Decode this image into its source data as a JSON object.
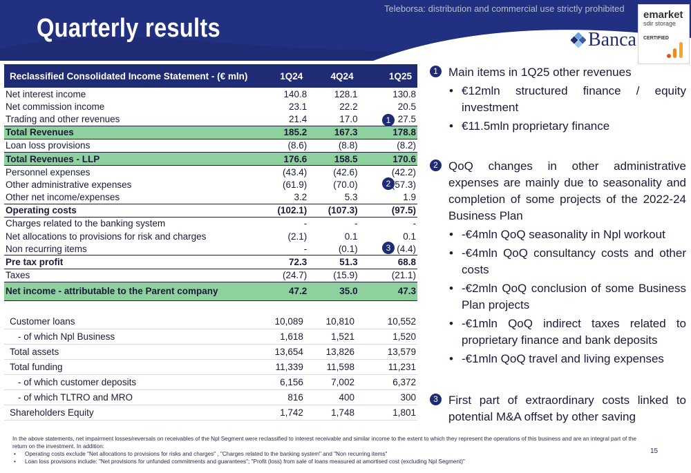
{
  "header": {
    "title": "Quarterly results",
    "watermark": "Teleborsa: distribution and commercial use strictly prohibited",
    "brand": "Banca",
    "badge": {
      "line1": "emarket",
      "line2": "sdir storage",
      "line3": "CERTIFIED"
    },
    "colors": {
      "navy": "#1f2b74",
      "green_highlight": "#8fd19e"
    }
  },
  "income_statement": {
    "header": {
      "label": "Reclassified Consolidated Income Statement - (€ mln)",
      "col1": "1Q24",
      "col2": "4Q24",
      "col3": "1Q25"
    },
    "rows": [
      {
        "label": "Net interest income",
        "v1": "140.8",
        "v2": "128.1",
        "v3": "130.8"
      },
      {
        "label": "Net commission income",
        "v1": "23.1",
        "v2": "22.2",
        "v3": "20.5"
      },
      {
        "label": "Trading and other revenues",
        "v1": "21.4",
        "v2": "17.0",
        "v3": "27.5"
      },
      {
        "label": "Total Revenues",
        "v1": "185.2",
        "v2": "167.3",
        "v3": "178.8"
      },
      {
        "label": "Loan loss provisions",
        "v1": "(8.6)",
        "v2": "(8.8)",
        "v3": "(8.2)"
      },
      {
        "label": "Total Revenues - LLP",
        "v1": "176.6",
        "v2": "158.5",
        "v3": "170.6"
      },
      {
        "label": "Personnel expenses",
        "v1": "(43.4)",
        "v2": "(42.6)",
        "v3": "(42.2)"
      },
      {
        "label": "Other administrative expenses",
        "v1": "(61.9)",
        "v2": "(70.0)",
        "v3": "(57.3)"
      },
      {
        "label": "Other net income/expenses",
        "v1": "3.2",
        "v2": "5.3",
        "v3": "1.9"
      },
      {
        "label": "Operating costs",
        "v1": "(102.1)",
        "v2": "(107.3)",
        "v3": "(97.5)"
      },
      {
        "label": "Charges related to the banking system",
        "v1": "-",
        "v2": "-",
        "v3": "-"
      },
      {
        "label": "Net allocations to provisions for risk and charges",
        "v1": "(2.1)",
        "v2": "0.1",
        "v3": "0.1"
      },
      {
        "label": "Non recurring items",
        "v1": "-",
        "v2": "(0.1)",
        "v3": "(4.4)"
      },
      {
        "label": "Pre tax profit",
        "v1": "72.3",
        "v2": "51.3",
        "v3": "68.8"
      },
      {
        "label": "Taxes",
        "v1": "(24.7)",
        "v2": "(15.9)",
        "v3": "(21.1)"
      },
      {
        "label": "Net income -  attributable to the Parent company",
        "v1": "47.2",
        "v2": "35.0",
        "v3": "47.3"
      }
    ],
    "markers": [
      "1",
      "2",
      "3"
    ]
  },
  "balance_sheet": {
    "rows": [
      {
        "label": "Customer loans",
        "v1": "10,089",
        "v2": "10,810",
        "v3": "10,552"
      },
      {
        "label": "- of which Npl Business",
        "v1": "1,618",
        "v2": "1,521",
        "v3": "1,520"
      },
      {
        "label": "Total assets",
        "v1": "13,654",
        "v2": "13,826",
        "v3": "13,579"
      },
      {
        "label": "Total funding",
        "v1": "11,339",
        "v2": "11,598",
        "v3": "11,231"
      },
      {
        "label": "- of which customer deposits",
        "v1": "6,156",
        "v2": "7,002",
        "v3": "6,372"
      },
      {
        "label": "- of which TLTRO and MRO",
        "v1": "816",
        "v2": "400",
        "v3": "300"
      },
      {
        "label": "Shareholders Equity",
        "v1": "1,742",
        "v2": "1,748",
        "v3": "1,801"
      }
    ]
  },
  "commentary": [
    {
      "num": "1",
      "heading": "Main items in 1Q25 other revenues",
      "bullets": [
        "€12mln structured finance / equity investment",
        "€11.5mln proprietary finance"
      ]
    },
    {
      "num": "2",
      "heading": "QoQ changes in other administrative expenses are mainly due to seasonality and completion of some projects of the 2022-24 Business Plan",
      "bullets": [
        "-€4mln QoQ seasonality in Npl workout",
        "-€4mln QoQ consultancy costs and other costs",
        "-€2mln QoQ conclusion of some Business Plan projects",
        "-€1mln QoQ indirect taxes related to proprietary finance and bank deposits",
        "-€1mln QoQ travel and living expenses"
      ]
    },
    {
      "num": "3",
      "heading": "First part of extraordinary costs linked to potential M&A offset by other saving",
      "bullets": []
    }
  ],
  "footnote": {
    "intro": "In the above statements, net impairment losses/reversals on receivables of the Npl Segment were reclassified to interest receivable and similar income to the extent to which they represent the operations of this business and are an integral part of the return on the investment. In addition:",
    "bullet1": "Operating costs exclude \"Net allocations to provisions for risks and charges\" , \"Charges related to the banking system\" and \"Non recurring items\"",
    "bullet2": "Loan loss provisions include:  \"Net provisions for unfunded commitments and guarantees\";  \"Profit (loss) from sale of loans measured at amortised cost (excluding Npl Segment)\""
  },
  "page_number": "15"
}
